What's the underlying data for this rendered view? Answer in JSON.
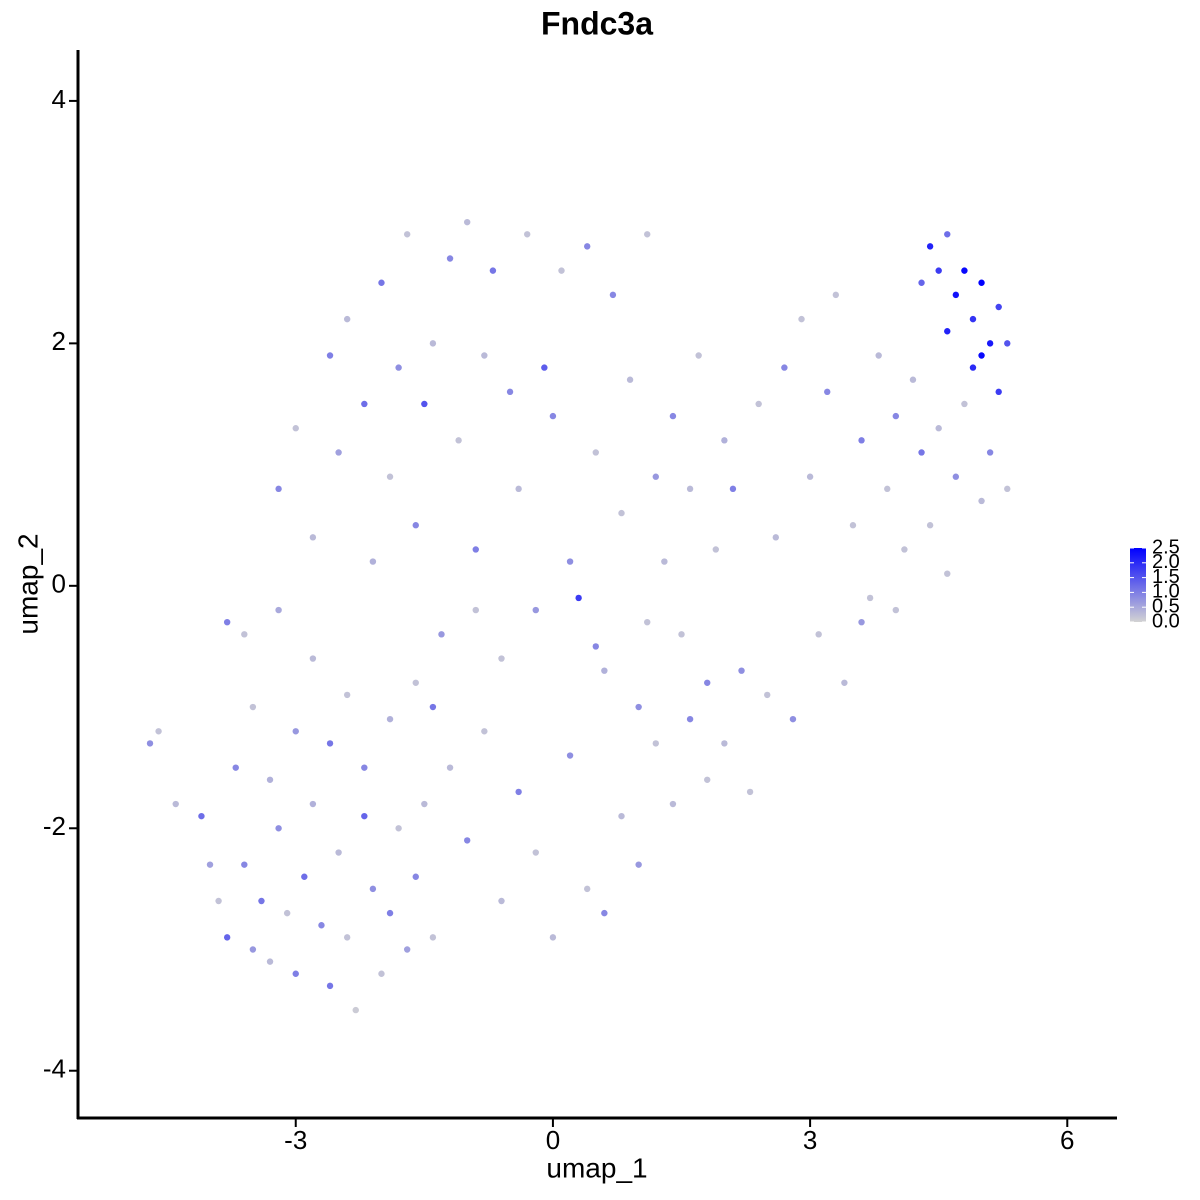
{
  "chart_data": {
    "type": "scatter",
    "title": "Fndc3a",
    "x_label": "umap_1",
    "y_label": "umap_2",
    "xlim": [
      -5.54,
      6.58
    ],
    "ylim": [
      -4.39,
      4.42
    ],
    "xticks": [
      -3,
      0,
      3,
      6
    ],
    "yticks": [
      -4,
      -2,
      0,
      2,
      4
    ],
    "colorbar": {
      "lim": [
        0,
        2.5
      ],
      "colors": [
        "#d3d3d3",
        "#0000ff"
      ],
      "ticks": [
        {
          "value": 0,
          "label": "0.0"
        },
        {
          "value": 0.5,
          "label": "0.5"
        },
        {
          "value": 1,
          "label": "1.0"
        },
        {
          "value": 1.5,
          "label": "1.5"
        },
        {
          "value": 2,
          "label": "2.0"
        },
        {
          "value": 2.5,
          "label": "2.5"
        }
      ]
    },
    "x": [
      -4.7,
      -4.6,
      -4.4,
      -4.1,
      -4.0,
      -3.9,
      -3.8,
      -3.6,
      -3.5,
      -3.4,
      -3.3,
      -3.2,
      -3.1,
      -3.0,
      -2.9,
      -2.8,
      -2.7,
      -2.6,
      -2.5,
      -2.4,
      -2.3,
      -2.2,
      -2.1,
      -2.0,
      -1.9,
      -1.8,
      -1.7,
      -1.6,
      -1.5,
      -1.4,
      -3.7,
      -3.5,
      -3.3,
      -3.0,
      -2.8,
      -2.6,
      -3.6,
      -3.8,
      -3.2,
      -2.4,
      -2.2,
      -1.9,
      -3.2,
      -3.0,
      -2.8,
      -2.6,
      -2.5,
      -2.4,
      -2.2,
      -2.1,
      -2.0,
      -1.9,
      -1.8,
      -1.7,
      -1.6,
      -1.5,
      -1.4,
      -1.3,
      -1.2,
      -1.1,
      -1.0,
      -0.9,
      -0.8,
      -0.7,
      -0.6,
      -0.5,
      -0.4,
      -0.3,
      -0.2,
      -0.1,
      0.0,
      0.1,
      0.2,
      0.3,
      0.4,
      0.5,
      0.6,
      0.7,
      0.8,
      0.9,
      1.0,
      1.1,
      1.2,
      1.3,
      1.4,
      1.5,
      1.6,
      1.7,
      1.8,
      1.9,
      2.0,
      2.1,
      -1.2,
      -1.0,
      -0.8,
      -0.6,
      -0.4,
      -0.2,
      0.0,
      0.2,
      0.4,
      0.6,
      0.8,
      1.0,
      1.2,
      1.4,
      1.6,
      1.8,
      2.0,
      2.2,
      2.3,
      -1.6,
      -1.4,
      -0.9,
      0.5,
      1.1,
      2.4,
      2.6,
      2.7,
      2.8,
      2.9,
      3.0,
      3.1,
      3.2,
      3.3,
      3.4,
      3.5,
      3.6,
      3.7,
      3.8,
      3.9,
      4.0,
      4.1,
      4.2,
      4.3,
      4.4,
      4.5,
      4.6,
      4.7,
      4.8,
      5.0,
      5.1,
      5.3,
      2.5,
      3.6,
      4.0,
      4.4,
      4.5,
      4.6,
      4.7,
      4.8,
      4.9,
      5.0,
      5.1,
      5.2,
      5.0,
      4.9,
      4.6,
      5.3,
      4.3,
      5.2
    ],
    "y": [
      -1.3,
      -1.2,
      -1.8,
      -1.9,
      -2.3,
      -2.6,
      -2.9,
      -2.3,
      -3.0,
      -2.6,
      -3.1,
      -2.0,
      -2.7,
      -3.2,
      -2.4,
      -1.8,
      -2.8,
      -3.3,
      -2.2,
      -2.9,
      -3.5,
      -1.9,
      -2.5,
      -3.2,
      -2.7,
      -2.0,
      -3.0,
      -2.4,
      -1.8,
      -2.9,
      -1.5,
      -1.0,
      -1.6,
      -1.2,
      -0.6,
      -1.3,
      -0.4,
      -0.3,
      -0.2,
      -0.9,
      -1.5,
      -1.1,
      0.8,
      1.3,
      0.4,
      1.9,
      1.1,
      2.2,
      1.5,
      0.2,
      2.5,
      0.9,
      1.8,
      2.9,
      0.5,
      1.5,
      2.0,
      -0.4,
      2.7,
      1.2,
      3.0,
      0.3,
      1.9,
      2.6,
      -0.6,
      1.6,
      0.8,
      2.9,
      -0.2,
      1.8,
      1.4,
      2.6,
      0.2,
      -0.1,
      2.8,
      1.1,
      -0.7,
      2.4,
      0.6,
      1.7,
      -1.0,
      2.9,
      0.9,
      0.2,
      1.4,
      -0.4,
      0.8,
      1.9,
      -0.8,
      0.3,
      1.2,
      0.8,
      -1.5,
      -2.1,
      -1.2,
      -2.6,
      -1.7,
      -2.2,
      -2.9,
      -1.4,
      -2.5,
      -2.7,
      -1.9,
      -2.3,
      -1.3,
      -1.8,
      -1.1,
      -1.6,
      -1.3,
      -0.7,
      -1.7,
      -0.8,
      -1.0,
      -0.2,
      -0.5,
      -0.3,
      1.5,
      0.4,
      1.8,
      -1.1,
      2.2,
      0.9,
      -0.4,
      1.6,
      2.4,
      -0.8,
      0.5,
      1.2,
      -0.1,
      1.9,
      0.8,
      1.4,
      0.3,
      1.7,
      1.1,
      0.5,
      1.3,
      0.1,
      0.9,
      1.5,
      0.7,
      1.1,
      0.8,
      -0.9,
      -0.3,
      -0.2,
      2.8,
      2.6,
      2.9,
      2.4,
      2.6,
      2.2,
      2.5,
      2.0,
      2.3,
      1.9,
      1.8,
      2.1,
      2.0,
      2.5,
      1.6
    ],
    "values": [
      0.8,
      0.2,
      0.3,
      1.2,
      0.6,
      0.2,
      1.3,
      0.9,
      0.7,
      1.1,
      0.3,
      0.8,
      0.2,
      1.0,
      1.2,
      0.4,
      0.9,
      1.1,
      0.3,
      0.2,
      0.1,
      1.3,
      0.8,
      0.2,
      1.0,
      0.2,
      0.6,
      0.9,
      0.3,
      0.2,
      0.9,
      0.2,
      0.4,
      0.7,
      0.3,
      1.1,
      0.2,
      1.0,
      0.5,
      0.2,
      0.9,
      0.4,
      0.9,
      0.2,
      0.3,
      1.0,
      0.6,
      0.3,
      1.2,
      0.4,
      1.1,
      0.2,
      0.8,
      0.2,
      0.9,
      1.5,
      0.3,
      0.7,
      0.9,
      0.2,
      0.3,
      1.0,
      0.3,
      1.1,
      0.2,
      0.9,
      0.3,
      0.2,
      0.7,
      1.4,
      0.9,
      0.2,
      0.8,
      1.8,
      0.9,
      0.2,
      0.4,
      0.9,
      0.2,
      0.3,
      0.8,
      0.2,
      0.7,
      0.3,
      0.9,
      0.2,
      0.3,
      0.2,
      0.9,
      0.2,
      0.4,
      1.0,
      0.3,
      0.9,
      0.2,
      0.3,
      1.0,
      0.2,
      0.3,
      0.8,
      0.2,
      0.9,
      0.3,
      0.7,
      0.2,
      0.3,
      0.9,
      0.2,
      0.3,
      0.8,
      0.2,
      0.2,
      1.1,
      0.2,
      0.9,
      0.2,
      0.2,
      0.3,
      0.9,
      0.8,
      0.2,
      0.3,
      0.2,
      0.9,
      0.2,
      0.3,
      0.2,
      1.0,
      0.2,
      0.3,
      0.2,
      0.9,
      0.2,
      0.3,
      1.1,
      0.2,
      0.3,
      0.2,
      0.8,
      0.2,
      0.3,
      0.9,
      0.2,
      0.2,
      0.7,
      0.2,
      2.1,
      1.8,
      1.2,
      2.3,
      2.4,
      1.9,
      2.5,
      2.2,
      1.7,
      2.4,
      2.0,
      2.1,
      1.5,
      1.3,
      1.8
    ]
  }
}
